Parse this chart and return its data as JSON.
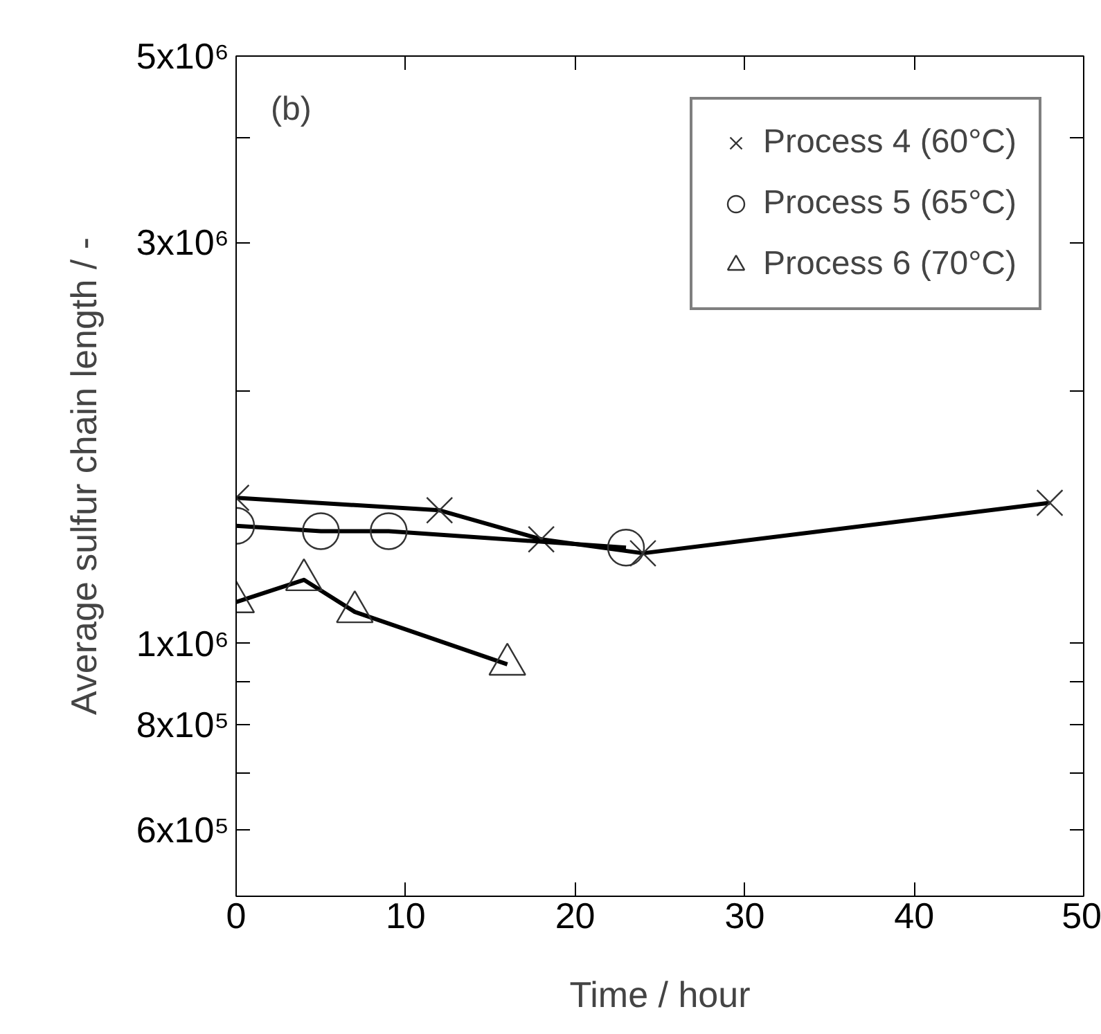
{
  "chart_data": {
    "type": "line",
    "xlabel": "Time / hour",
    "ylabel": "Average sulfur chain length / -",
    "annotations": [
      "(b)"
    ],
    "log": "y",
    "xlim": [
      0,
      50
    ],
    "xticks": [
      0,
      10,
      20,
      30,
      40,
      50
    ],
    "ylim": [
      500000,
      5000000
    ],
    "yticks": [
      {
        "value": 5000000,
        "label": "5x10⁶"
      },
      {
        "value": 4000000,
        "label": null
      },
      {
        "value": 3000000,
        "label": "3x10⁶"
      },
      {
        "value": 2000000,
        "label": null
      },
      {
        "value": 1000000,
        "label": "1x10⁶"
      },
      {
        "value": 900000,
        "label": null
      },
      {
        "value": 800000,
        "label": "8x10⁵"
      },
      {
        "value": 700000,
        "label": null
      },
      {
        "value": 600000,
        "label": "6x10⁵"
      }
    ],
    "grid": false,
    "legend": "top right",
    "line_style": "solid",
    "series": [
      {
        "name": "Process 4 (60°C)",
        "color": "#000000",
        "marker": "cross",
        "x": [
          0,
          12,
          18,
          24,
          48
        ],
        "values": [
          1490000,
          1440000,
          1330000,
          1280000,
          1470000
        ]
      },
      {
        "name": "Process 5 (65°C)",
        "color": "#000000",
        "marker": "circle",
        "x": [
          0,
          5,
          9,
          23
        ],
        "values": [
          1380000,
          1360000,
          1360000,
          1300000
        ]
      },
      {
        "name": "Process 6 (70°C)",
        "color": "#000000",
        "marker": "triangle",
        "x": [
          0,
          4,
          7,
          16
        ],
        "values": [
          1120000,
          1190000,
          1090000,
          944000
        ]
      }
    ]
  }
}
